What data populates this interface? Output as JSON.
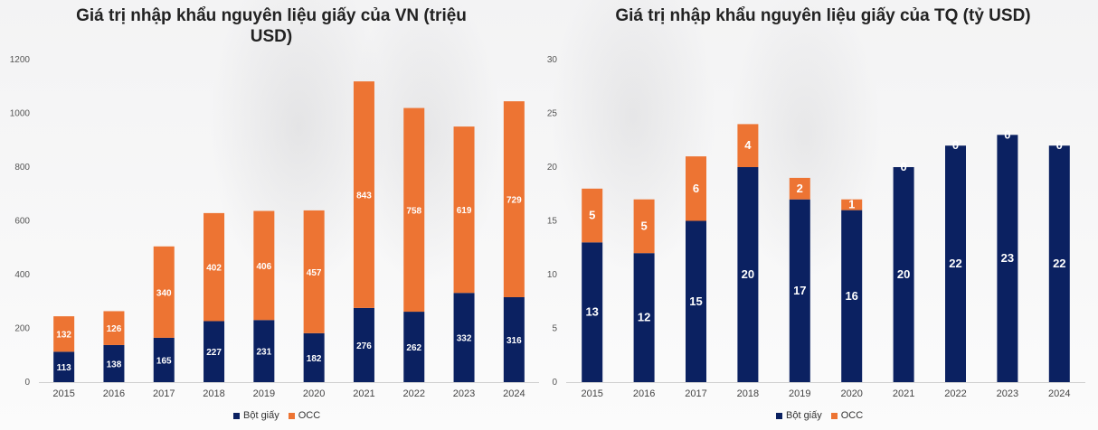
{
  "colors": {
    "bot_giay": "#0b2161",
    "occ": "#ed7433"
  },
  "chart_data": [
    {
      "type": "bar",
      "stacked": true,
      "title": "Giá trị nhập khẩu nguyên liệu giấy của VN (triệu USD)",
      "categories": [
        "2015",
        "2016",
        "2017",
        "2018",
        "2019",
        "2020",
        "2021",
        "2022",
        "2023",
        "2024"
      ],
      "series": [
        {
          "name": "Bột giấy",
          "values": [
            113,
            138,
            165,
            227,
            231,
            182,
            276,
            262,
            332,
            316
          ]
        },
        {
          "name": "OCC",
          "values": [
            132,
            126,
            340,
            402,
            406,
            457,
            843,
            758,
            619,
            729
          ]
        }
      ],
      "ylim": [
        0,
        1200
      ],
      "yticks": [
        0,
        200,
        400,
        600,
        800,
        1000,
        1200
      ],
      "grid": false,
      "legend": "bottom"
    },
    {
      "type": "bar",
      "stacked": true,
      "title": "Giá trị nhập khẩu nguyên liệu giấy của TQ (tỷ USD)",
      "categories": [
        "2015",
        "2016",
        "2017",
        "2018",
        "2019",
        "2020",
        "2021",
        "2022",
        "2023",
        "2024"
      ],
      "series": [
        {
          "name": "Bột giấy",
          "values": [
            13,
            12,
            15,
            20,
            17,
            16,
            20,
            22,
            23,
            22
          ]
        },
        {
          "name": "OCC",
          "values": [
            5,
            5,
            6,
            4,
            2,
            1,
            0,
            0,
            0,
            0
          ]
        }
      ],
      "ylim": [
        0,
        30
      ],
      "yticks": [
        0,
        5,
        10,
        15,
        20,
        25,
        30
      ],
      "grid": false,
      "legend": "bottom"
    }
  ]
}
